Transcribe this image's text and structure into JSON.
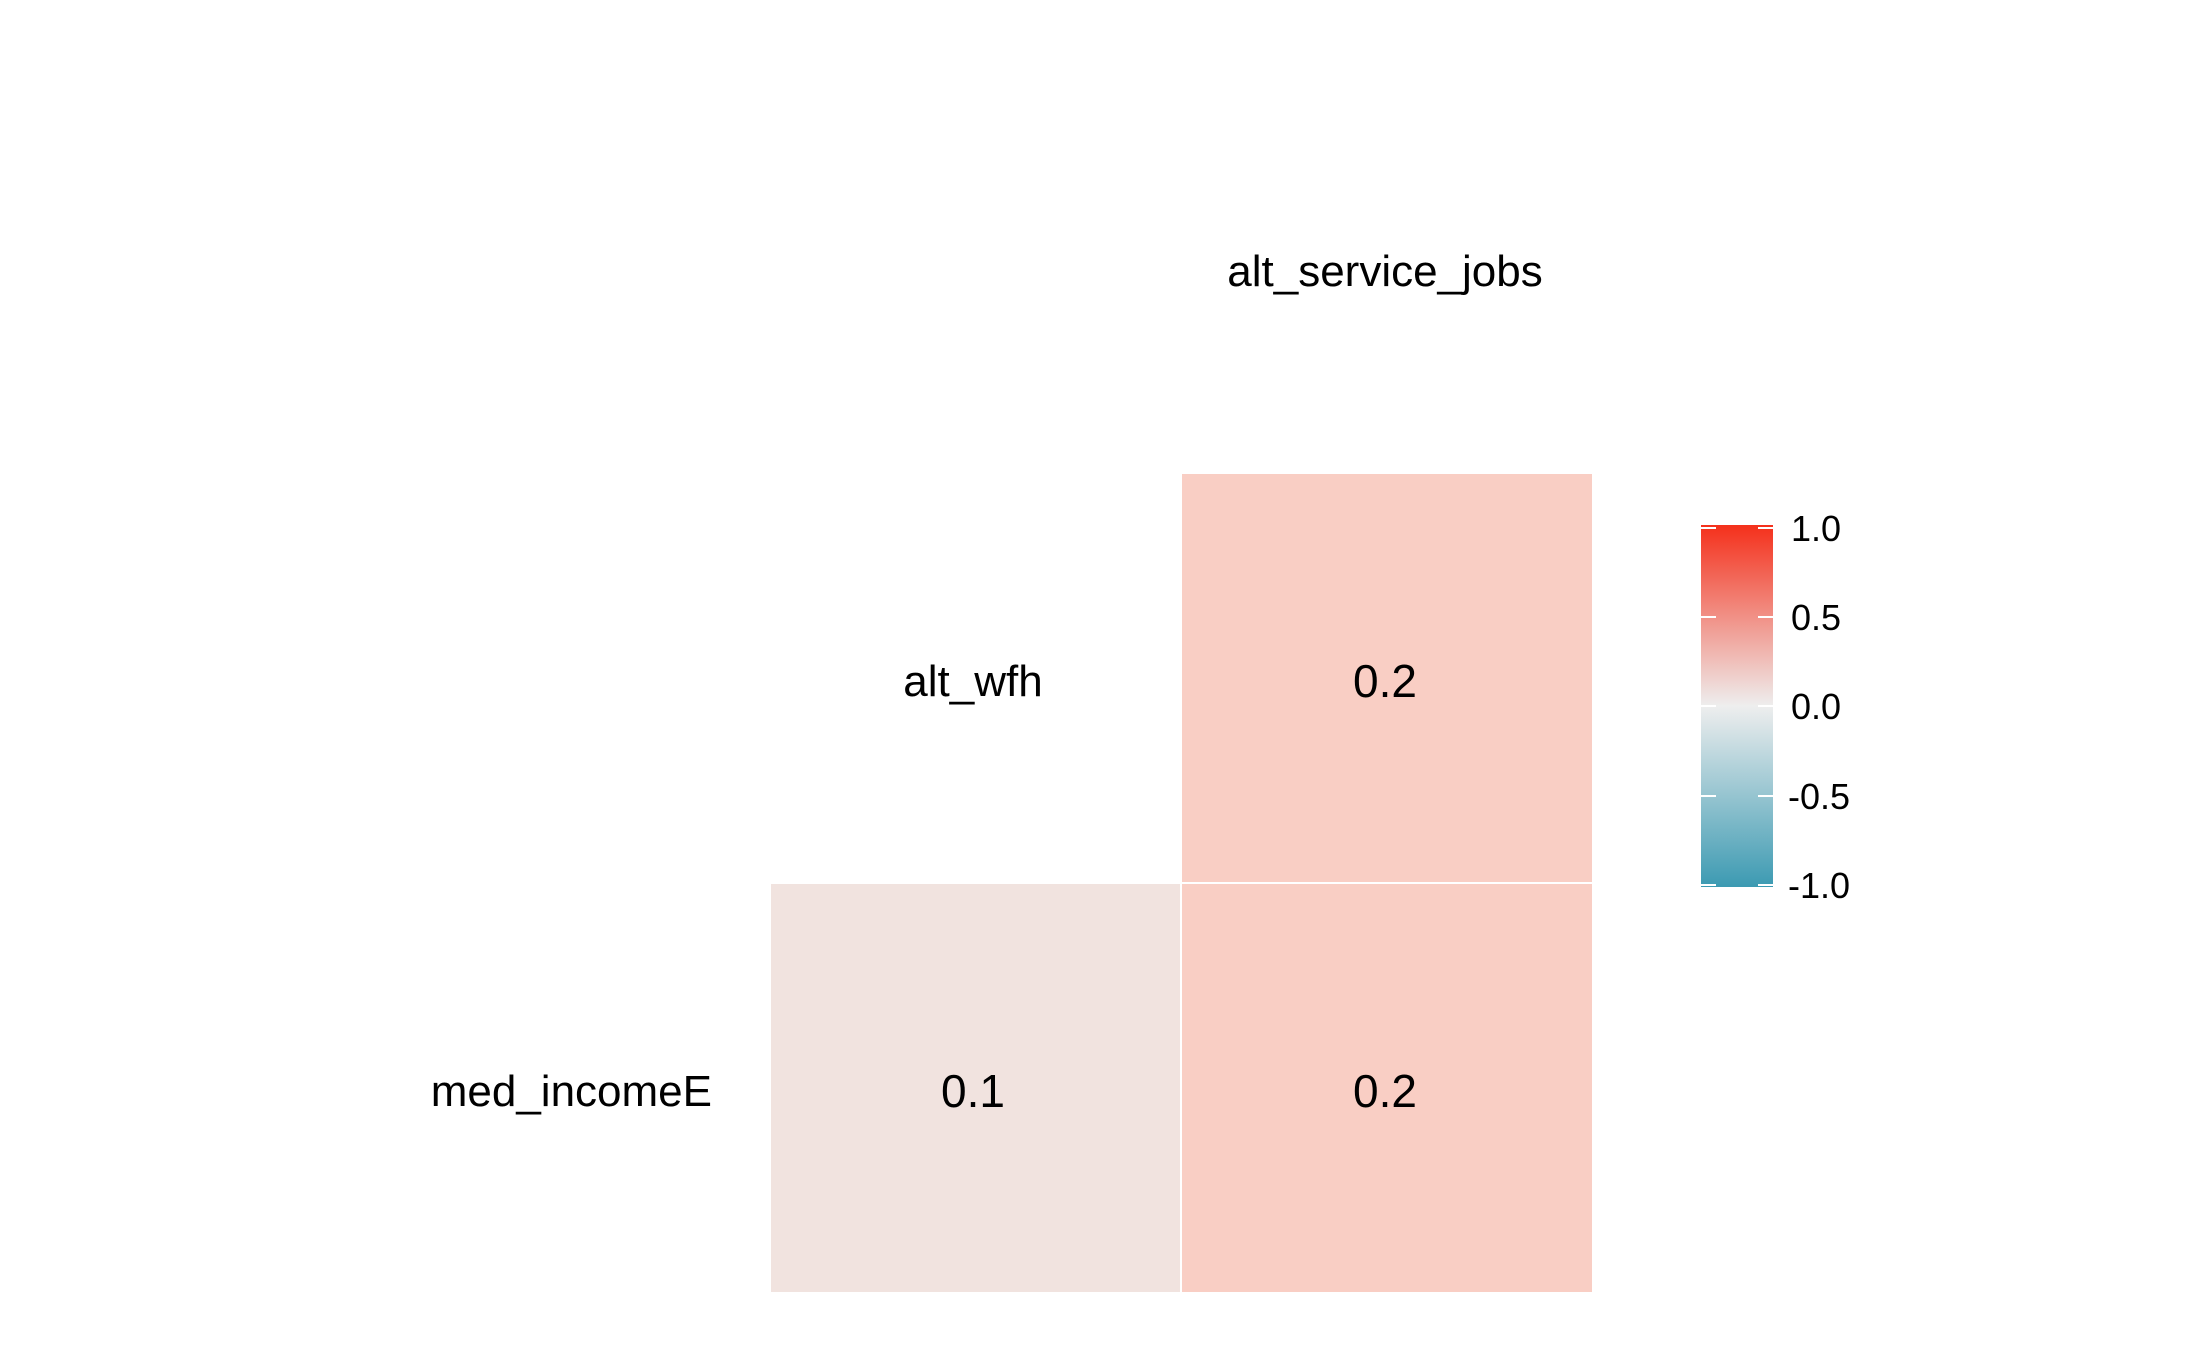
{
  "chart_data": {
    "type": "heatmap",
    "title": "",
    "xlabel": "",
    "ylabel": "",
    "variables": [
      "med_incomeE",
      "alt_wfh",
      "alt_service_jobs"
    ],
    "cells": [
      {
        "row": "alt_wfh",
        "col": "alt_service_jobs",
        "value": 0.2,
        "label": "0.2",
        "color": "#F9CEC4"
      },
      {
        "row": "med_incomeE",
        "col": "alt_wfh",
        "value": 0.1,
        "label": "0.1",
        "color": "#F1E3DF"
      },
      {
        "row": "med_incomeE",
        "col": "alt_service_jobs",
        "value": 0.2,
        "label": "0.2",
        "color": "#F9CEC4"
      }
    ],
    "legend": {
      "position": "right",
      "range": [
        -1.0,
        1.0
      ],
      "ticks": [
        "1.0",
        "0.5",
        "0.0",
        "-0.5",
        "-1.0"
      ],
      "tick_values": [
        1.0,
        0.5,
        0.0,
        -0.5,
        -1.0
      ],
      "colors": {
        "high": "#F4301B",
        "mid": "#EEEEEE",
        "low": "#3C9AB2"
      }
    },
    "grid": false
  }
}
